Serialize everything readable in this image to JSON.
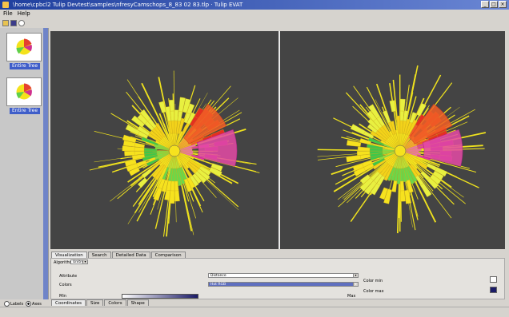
{
  "window": {
    "title": "\\home\\cpbcl2 Tulip Devtest\\samples\\nfresyCamschops_8_83 02 83.tlp · Tulip EVAT",
    "buttons": [
      "_",
      "□",
      "×"
    ]
  },
  "menu": [
    "File",
    "Help"
  ],
  "toolbar": {
    "icons": [
      "open-icon",
      "save-icon",
      "zoom-icon"
    ]
  },
  "sidebar": {
    "items": [
      {
        "label": "Entire Tree"
      },
      {
        "label": "Entire Tree"
      }
    ]
  },
  "views": {
    "background": "#444444"
  },
  "tabs": [
    "Visualization",
    "Search",
    "Detailed Data",
    "Comparison"
  ],
  "panel": {
    "algorithm_label": "Algorithm",
    "algorithm_value": "Unitree",
    "attribute_label": "Attribute",
    "attribute_value": "Distance",
    "colors_label": "Colors",
    "colors_value": "Hot RGB",
    "min_label": "Min",
    "max_label": "Max",
    "color_min_label": "Color min",
    "color_max_label": "Color max"
  },
  "bottom_tabs": [
    "Coordinates",
    "Size",
    "Colors",
    "Shape"
  ],
  "status": {
    "labels_option": "Labels",
    "axes_option": "Axes"
  },
  "colors": {
    "title_bar": "#1f3f9e",
    "selection": "#3f5ec9",
    "gradient_end": "#1a1a66"
  }
}
